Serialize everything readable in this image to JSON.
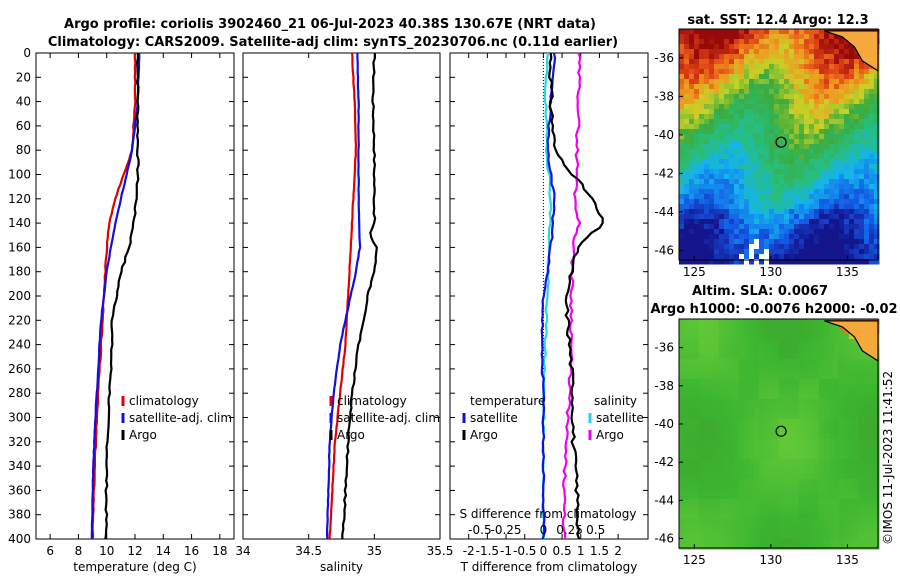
{
  "title_line1": "Argo profile: coriolis 3902460_21 06-Jul-2023 40.38S 130.67E (NRT data)",
  "title_line2": "Climatology: CARS2009. Satellite-adj clim: synTS_20230706.nc (0.11d earlier)",
  "credit": "©IMOS 11-Jul-2023 11:41:52",
  "colors": {
    "climatology": "#e00000",
    "satellite": "#1010e0",
    "argo": "#000000",
    "sal_satellite": "#20d8e8",
    "sal_argo": "#f000f0"
  },
  "chart_data": [
    {
      "type": "line",
      "name": "temperature-profile",
      "xlabel": "temperature (deg C)",
      "ylabel": "",
      "xlim": [
        5,
        19
      ],
      "ylim": [
        0,
        400
      ],
      "xticks": [
        6,
        8,
        10,
        12,
        14,
        16,
        18
      ],
      "yticks": [
        0,
        20,
        40,
        60,
        80,
        100,
        120,
        140,
        160,
        180,
        200,
        220,
        240,
        260,
        280,
        300,
        320,
        340,
        360,
        380,
        400
      ],
      "legend": [
        "climatology",
        "satellite-adj. clim",
        "Argo"
      ],
      "series": [
        {
          "name": "climatology",
          "depth": [
            0,
            40,
            80,
            100,
            120,
            140,
            160,
            180,
            200,
            220,
            260,
            300,
            340,
            400
          ],
          "values": [
            12.0,
            12.0,
            11.8,
            11.2,
            10.6,
            10.2,
            10.0,
            9.9,
            9.8,
            9.7,
            9.5,
            9.3,
            9.15,
            9.0
          ]
        },
        {
          "name": "satellite-adj. clim",
          "depth": [
            0,
            40,
            80,
            100,
            120,
            140,
            160,
            180,
            200,
            220,
            260,
            300,
            340,
            400
          ],
          "values": [
            12.3,
            12.2,
            11.8,
            11.4,
            11.0,
            10.6,
            10.3,
            10.0,
            9.8,
            9.6,
            9.4,
            9.2,
            9.05,
            8.95
          ]
        },
        {
          "name": "Argo",
          "depth": [
            0,
            40,
            80,
            100,
            120,
            140,
            160,
            180,
            200,
            220,
            260,
            300,
            340,
            400
          ],
          "values": [
            12.2,
            12.2,
            12.2,
            12.2,
            12.1,
            11.9,
            11.6,
            11.0,
            10.7,
            10.4,
            10.3,
            10.1,
            10.0,
            9.95
          ]
        }
      ]
    },
    {
      "type": "line",
      "name": "salinity-profile",
      "xlabel": "salinity",
      "xlim": [
        34,
        35.5
      ],
      "ylim": [
        0,
        400
      ],
      "xticks": [
        "34",
        "34.5",
        "35",
        "35.5"
      ],
      "xtick_values": [
        34,
        34.5,
        35,
        35.5
      ],
      "legend": [
        "climatology",
        "satellite-adj. clim",
        "Argo"
      ],
      "series": [
        {
          "name": "climatology",
          "depth": [
            0,
            40,
            80,
            120,
            160,
            200,
            240,
            280,
            320,
            360,
            400
          ],
          "values": [
            34.83,
            34.85,
            34.86,
            34.84,
            34.82,
            34.8,
            34.78,
            34.74,
            34.7,
            34.68,
            34.66
          ]
        },
        {
          "name": "satellite-adj. clim",
          "depth": [
            0,
            40,
            80,
            120,
            160,
            180,
            200,
            240,
            280,
            320,
            360,
            400
          ],
          "values": [
            34.87,
            34.88,
            34.88,
            34.88,
            34.89,
            34.86,
            34.82,
            34.74,
            34.69,
            34.66,
            34.65,
            34.64
          ]
        },
        {
          "name": "Argo",
          "depth": [
            0,
            40,
            80,
            120,
            140,
            150,
            160,
            180,
            200,
            240,
            280,
            320,
            360,
            400
          ],
          "values": [
            35.0,
            34.99,
            35.0,
            35.0,
            35.0,
            34.96,
            35.02,
            35.0,
            34.95,
            34.88,
            34.83,
            34.8,
            34.78,
            34.76
          ]
        }
      ]
    },
    {
      "type": "line",
      "name": "difference-profile",
      "xlabel": "T difference from climatology",
      "top_axis_label": "S difference from climatology",
      "xlim": [
        -2.5,
        2.8
      ],
      "ylim": [
        0,
        400
      ],
      "xticks": [
        "-2",
        "-1.5",
        "-1",
        "-0.5",
        "0",
        "0.5",
        "1",
        "1.5",
        "2"
      ],
      "xtick_values": [
        -2,
        -1.5,
        -1,
        -0.5,
        0,
        0.5,
        1,
        1.5,
        2
      ],
      "s_ticks": [
        "-0.5",
        "-0.25",
        "0",
        "0.25",
        "0.5"
      ],
      "s_tick_positions": [
        -1.7,
        -1.0,
        0,
        0.7,
        1.4
      ],
      "legend_left_title": "temperature",
      "legend_right_title": "salinity",
      "legend_left": [
        "satellite",
        "Argo"
      ],
      "legend_right": [
        "satellite",
        "Argo"
      ],
      "series": [
        {
          "name": "T satellite",
          "depth": [
            0,
            40,
            80,
            120,
            160,
            200,
            240,
            280,
            320,
            360,
            400
          ],
          "values": [
            0.3,
            0.2,
            0.1,
            0.3,
            0.2,
            0.0,
            -0.05,
            0.0,
            0.0,
            0.0,
            0.0
          ]
        },
        {
          "name": "T Argo",
          "depth": [
            0,
            40,
            80,
            100,
            120,
            140,
            160,
            200,
            240,
            280,
            320,
            360,
            400
          ],
          "values": [
            0.2,
            0.2,
            0.3,
            0.8,
            1.3,
            1.6,
            0.9,
            0.6,
            0.7,
            0.8,
            0.8,
            0.9,
            0.95
          ]
        },
        {
          "name": "S satellite",
          "depth": [
            0,
            40,
            80,
            120,
            160,
            200,
            240,
            280,
            320,
            360,
            400
          ],
          "values": [
            0.1,
            0.05,
            0.1,
            0.2,
            0.15,
            0.1,
            0.05,
            0.0,
            0.0,
            0.0,
            0.0
          ]
        },
        {
          "name": "S Argo",
          "depth": [
            0,
            40,
            80,
            100,
            120,
            140,
            160,
            200,
            240,
            280,
            320,
            360,
            400
          ],
          "values": [
            0.95,
            0.95,
            0.9,
            0.9,
            0.85,
            0.95,
            0.8,
            0.75,
            0.75,
            0.7,
            0.6,
            0.55,
            0.55
          ]
        }
      ]
    },
    {
      "type": "heatmap",
      "name": "sst-map",
      "title": "sat. SST: 12.4 Argo: 12.3",
      "xlim": [
        124,
        137
      ],
      "ylim": [
        -46.5,
        -34.5
      ],
      "xticks": [
        "125",
        "130",
        "135"
      ],
      "xtick_values": [
        125,
        130,
        135
      ],
      "yticks": [
        "-36",
        "-38",
        "-40",
        "-42",
        "-44",
        "-46"
      ],
      "ytick_values": [
        -36,
        -38,
        -40,
        -42,
        -44,
        -46
      ],
      "marker": {
        "lon": 130.67,
        "lat": -40.38
      }
    },
    {
      "type": "heatmap",
      "name": "sla-map",
      "title_line1": "Altim. SLA: 0.0067",
      "title_line2": "Argo h1000: -0.0076 h2000: -0.02",
      "xlim": [
        124,
        137
      ],
      "ylim": [
        -46.5,
        -34.5
      ],
      "xticks": [
        "125",
        "130",
        "135"
      ],
      "xtick_values": [
        125,
        130,
        135
      ],
      "yticks": [
        "-36",
        "-38",
        "-40",
        "-42",
        "-44",
        "-46"
      ],
      "ytick_values": [
        -36,
        -38,
        -40,
        -42,
        -44,
        -46
      ],
      "marker": {
        "lon": 130.67,
        "lat": -40.38
      }
    }
  ]
}
